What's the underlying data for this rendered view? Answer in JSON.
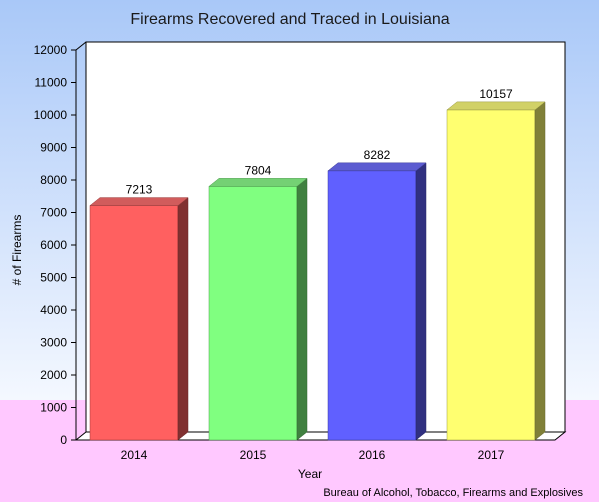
{
  "chart_data": {
    "type": "bar",
    "title": "Firearms Recovered and Traced in Louisiana",
    "xlabel": "Year",
    "ylabel": "# of Firearms",
    "categories": [
      "2014",
      "2015",
      "2016",
      "2017"
    ],
    "values": [
      7213,
      7804,
      8282,
      10157
    ],
    "value_labels": [
      "7213",
      "7804",
      "8282",
      "10157"
    ],
    "ylim": [
      0,
      12000
    ],
    "yticks": [
      "0",
      "1000",
      "2000",
      "3000",
      "4000",
      "5000",
      "6000",
      "7000",
      "8000",
      "9000",
      "10000",
      "11000",
      "12000"
    ],
    "colors": [
      "#ff6060",
      "#80ff80",
      "#6060ff",
      "#ffff70"
    ],
    "grid": false,
    "legend": "none",
    "style": "3d-bar",
    "source": "Bureau of Alcohol, Tobacco, Firearms and Explosives"
  },
  "colors": {
    "background_top": "#a9c8f8",
    "background_bottom": "#ffffff",
    "floor_band": "#ffc8ff",
    "plot_area": "#ffffff"
  }
}
